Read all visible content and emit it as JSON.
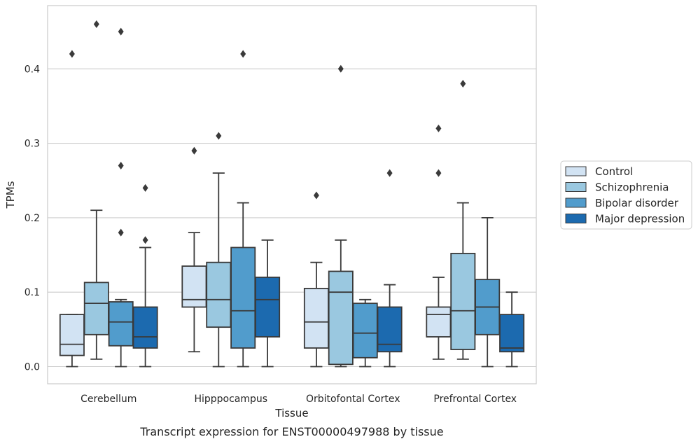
{
  "caption": "Transcript expression for ENST00000497988 by tissue",
  "chart_data": {
    "type": "boxplot",
    "title": "",
    "xlabel": "Tissue",
    "ylabel": "TPMs",
    "ylim": [
      -0.022,
      0.485
    ],
    "yticks": [
      0.0,
      0.1,
      0.2,
      0.3,
      0.4
    ],
    "ytick_labels": [
      "0.0",
      "0.1",
      "0.2",
      "0.3",
      "0.4"
    ],
    "grid": "horizontal",
    "legend_position": "right",
    "categories": [
      "Cerebellum",
      "Hipppocampus",
      "Orbitofontal Cortex",
      "Prefrontal Cortex"
    ],
    "series": [
      {
        "name": "Control",
        "color": "#d2e3f3",
        "boxes": [
          {
            "whislo": 0.0,
            "q1": 0.015,
            "med": 0.03,
            "q3": 0.07,
            "whishi": 0.07,
            "fliers": [
              0.42
            ]
          },
          {
            "whislo": 0.02,
            "q1": 0.08,
            "med": 0.09,
            "q3": 0.135,
            "whishi": 0.18,
            "fliers": [
              0.29
            ]
          },
          {
            "whislo": 0.0,
            "q1": 0.025,
            "med": 0.06,
            "q3": 0.105,
            "whishi": 0.14,
            "fliers": [
              0.23
            ]
          },
          {
            "whislo": 0.01,
            "q1": 0.04,
            "med": 0.07,
            "q3": 0.08,
            "whishi": 0.12,
            "fliers": [
              0.26,
              0.32
            ]
          }
        ]
      },
      {
        "name": "Schizophrenia",
        "color": "#9ac8e0",
        "boxes": [
          {
            "whislo": 0.01,
            "q1": 0.043,
            "med": 0.085,
            "q3": 0.113,
            "whishi": 0.21,
            "fliers": [
              0.46
            ]
          },
          {
            "whislo": 0.0,
            "q1": 0.053,
            "med": 0.09,
            "q3": 0.14,
            "whishi": 0.26,
            "fliers": [
              0.31
            ]
          },
          {
            "whislo": 0.0,
            "q1": 0.003,
            "med": 0.1,
            "q3": 0.128,
            "whishi": 0.17,
            "fliers": [
              0.4
            ]
          },
          {
            "whislo": 0.01,
            "q1": 0.023,
            "med": 0.075,
            "q3": 0.152,
            "whishi": 0.22,
            "fliers": [
              0.38
            ]
          }
        ]
      },
      {
        "name": "Bipolar disorder",
        "color": "#519ccc",
        "boxes": [
          {
            "whislo": 0.0,
            "q1": 0.028,
            "med": 0.06,
            "q3": 0.087,
            "whishi": 0.09,
            "fliers": [
              0.18,
              0.27,
              0.45
            ]
          },
          {
            "whislo": 0.0,
            "q1": 0.025,
            "med": 0.075,
            "q3": 0.16,
            "whishi": 0.22,
            "fliers": [
              0.42
            ]
          },
          {
            "whislo": 0.0,
            "q1": 0.012,
            "med": 0.045,
            "q3": 0.085,
            "whishi": 0.09,
            "fliers": []
          },
          {
            "whislo": 0.0,
            "q1": 0.043,
            "med": 0.08,
            "q3": 0.117,
            "whishi": 0.2,
            "fliers": []
          }
        ]
      },
      {
        "name": "Major depression",
        "color": "#1c6aaf",
        "boxes": [
          {
            "whislo": 0.0,
            "q1": 0.025,
            "med": 0.04,
            "q3": 0.08,
            "whishi": 0.16,
            "fliers": [
              0.17,
              0.24
            ]
          },
          {
            "whislo": 0.0,
            "q1": 0.04,
            "med": 0.09,
            "q3": 0.12,
            "whishi": 0.17,
            "fliers": []
          },
          {
            "whislo": 0.0,
            "q1": 0.02,
            "med": 0.03,
            "q3": 0.08,
            "whishi": 0.11,
            "fliers": [
              0.26
            ]
          },
          {
            "whislo": 0.0,
            "q1": 0.02,
            "med": 0.025,
            "q3": 0.07,
            "whishi": 0.1,
            "fliers": []
          }
        ]
      }
    ]
  }
}
